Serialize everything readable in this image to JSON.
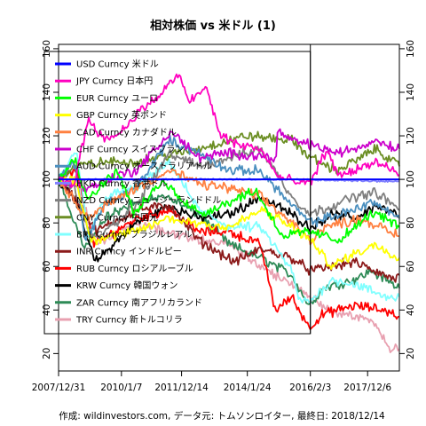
{
  "chart_data": {
    "type": "line",
    "title": "相対株価 vs 米ドル (1)",
    "credit": "作成: wildinvestors.com, データ元: トムソンロイター, 最終日: 2018/12/14",
    "x_tick_labels": [
      "2007/12/31",
      "2010/1/7",
      "2011/12/14",
      "2014/1/24",
      "2016/2/3",
      "2017/12/6"
    ],
    "x_range": [
      "2007-12-31",
      "2018-12-14"
    ],
    "ylim": [
      12,
      162
    ],
    "y_ticks": [
      20,
      40,
      60,
      80,
      100,
      120,
      140,
      160
    ],
    "marker_date": "2016-02-03",
    "legend_position": "top-left",
    "series": [
      {
        "name": "USD Curncy 米ドル",
        "color": "#0000ff",
        "points": [
          [
            "2007-12-31",
            100
          ],
          [
            "2018-12-14",
            100
          ]
        ]
      },
      {
        "name": "JPY Curncy 日本円",
        "color": "#ff00bf",
        "points": [
          [
            "2007-12-31",
            100
          ],
          [
            "2008-06-30",
            98
          ],
          [
            "2008-12-15",
            128
          ],
          [
            "2009-06-30",
            118
          ],
          [
            "2010-01-07",
            122
          ],
          [
            "2010-06-30",
            130
          ],
          [
            "2011-03-15",
            138
          ],
          [
            "2011-10-31",
            148
          ],
          [
            "2012-03-15",
            136
          ],
          [
            "2012-09-30",
            142
          ],
          [
            "2013-03-15",
            120
          ],
          [
            "2013-09-30",
            116
          ],
          [
            "2014-06-30",
            114
          ],
          [
            "2014-12-31",
            102
          ],
          [
            "2015-06-30",
            99
          ],
          [
            "2016-02-03",
            98
          ],
          [
            "2016-08-15",
            114
          ],
          [
            "2016-12-15",
            102
          ],
          [
            "2017-06-30",
            104
          ],
          [
            "2018-03-15",
            108
          ],
          [
            "2018-12-14",
            102
          ]
        ]
      },
      {
        "name": "EUR Curncy ユーロ",
        "color": "#00ff00",
        "points": [
          [
            "2007-12-31",
            100
          ],
          [
            "2008-07-15",
            110
          ],
          [
            "2008-11-15",
            91
          ],
          [
            "2009-11-30",
            104
          ],
          [
            "2010-06-07",
            84
          ],
          [
            "2011-04-30",
            99
          ],
          [
            "2012-07-20",
            84
          ],
          [
            "2014-04-30",
            95
          ],
          [
            "2015-03-15",
            74
          ],
          [
            "2016-02-03",
            76
          ],
          [
            "2017-01-03",
            72
          ],
          [
            "2018-02-15",
            85
          ],
          [
            "2018-12-14",
            78
          ]
        ]
      },
      {
        "name": "GBP Curncy 英ポンド",
        "color": "#ffff00",
        "points": [
          [
            "2007-12-31",
            100
          ],
          [
            "2008-07-15",
            100
          ],
          [
            "2009-01-15",
            72
          ],
          [
            "2010-06-30",
            76
          ],
          [
            "2011-06-30",
            82
          ],
          [
            "2013-06-30",
            78
          ],
          [
            "2014-07-15",
            86
          ],
          [
            "2015-06-30",
            78
          ],
          [
            "2016-02-03",
            72
          ],
          [
            "2016-10-15",
            60
          ],
          [
            "2017-06-30",
            66
          ],
          [
            "2018-03-15",
            70
          ],
          [
            "2018-12-14",
            64
          ]
        ]
      },
      {
        "name": "CAD Curncy カナダドル",
        "color": "#ff8040",
        "points": [
          [
            "2007-12-31",
            100
          ],
          [
            "2008-12-15",
            82
          ],
          [
            "2009-06-30",
            88
          ],
          [
            "2010-06-30",
            96
          ],
          [
            "2011-07-30",
            104
          ],
          [
            "2012-06-30",
            98
          ],
          [
            "2013-06-30",
            96
          ],
          [
            "2014-06-30",
            92
          ],
          [
            "2015-06-30",
            80
          ],
          [
            "2016-02-03",
            72
          ],
          [
            "2016-06-30",
            78
          ],
          [
            "2017-09-15",
            82
          ],
          [
            "2018-12-14",
            74
          ]
        ]
      },
      {
        "name": "CHF Curncy スイスフラン",
        "color": "#cc00cc",
        "points": [
          [
            "2007-12-31",
            100
          ],
          [
            "2008-12-15",
            96
          ],
          [
            "2009-12-15",
            102
          ],
          [
            "2010-06-30",
            104
          ],
          [
            "2011-08-15",
            122
          ],
          [
            "2012-06-30",
            110
          ],
          [
            "2013-06-30",
            112
          ],
          [
            "2014-12-31",
            110
          ],
          [
            "2015-01-16",
            122
          ],
          [
            "2015-06-30",
            118
          ],
          [
            "2016-02-03",
            116
          ],
          [
            "2016-12-15",
            112
          ],
          [
            "2017-06-30",
            114
          ],
          [
            "2018-03-15",
            118
          ],
          [
            "2018-12-14",
            114
          ]
        ]
      },
      {
        "name": "AUD Curncy オーストラリアドル",
        "color": "#4a8fbf",
        "points": [
          [
            "2007-12-31",
            100
          ],
          [
            "2008-07-15",
            108
          ],
          [
            "2008-10-31",
            72
          ],
          [
            "2009-06-30",
            88
          ],
          [
            "2010-06-30",
            96
          ],
          [
            "2011-07-15",
            118
          ],
          [
            "2012-06-30",
            112
          ],
          [
            "2013-06-30",
            104
          ],
          [
            "2014-06-30",
            104
          ],
          [
            "2015-06-30",
            88
          ],
          [
            "2016-02-03",
            80
          ],
          [
            "2017-06-30",
            86
          ],
          [
            "2018-01-25",
            90
          ],
          [
            "2018-12-14",
            82
          ]
        ]
      },
      {
        "name": "HKD Curncy 香港ドル",
        "color": "#8080ff",
        "points": [
          [
            "2007-12-31",
            100
          ],
          [
            "2008-03-15",
            100
          ],
          [
            "2009-06-30",
            100
          ],
          [
            "2012-06-30",
            100
          ],
          [
            "2015-06-30",
            100
          ],
          [
            "2018-12-14",
            99
          ]
        ]
      },
      {
        "name": "NZD Curncy ニュージーランドドル",
        "color": "#7f7f7f",
        "points": [
          [
            "2007-12-31",
            100
          ],
          [
            "2008-06-30",
            96
          ],
          [
            "2009-02-15",
            72
          ],
          [
            "2010-06-30",
            88
          ],
          [
            "2011-07-30",
            112
          ],
          [
            "2012-06-30",
            106
          ],
          [
            "2013-06-30",
            110
          ],
          [
            "2014-06-30",
            114
          ],
          [
            "2015-06-30",
            92
          ],
          [
            "2016-02-03",
            84
          ],
          [
            "2017-06-30",
            92
          ],
          [
            "2018-03-15",
            94
          ],
          [
            "2018-12-14",
            86
          ]
        ]
      },
      {
        "name": "CNY Curncy 中国元",
        "color": "#6b8e23",
        "points": [
          [
            "2007-12-31",
            100
          ],
          [
            "2008-07-15",
            106
          ],
          [
            "2009-06-30",
            108
          ],
          [
            "2010-06-30",
            108
          ],
          [
            "2012-06-30",
            114
          ],
          [
            "2013-06-30",
            118
          ],
          [
            "2014-01-30",
            120
          ],
          [
            "2015-06-30",
            118
          ],
          [
            "2016-02-03",
            110
          ],
          [
            "2016-12-15",
            104
          ],
          [
            "2018-03-15",
            114
          ],
          [
            "2018-12-14",
            106
          ]
        ]
      },
      {
        "name": "BRL Curncy ブラジルレアル",
        "color": "#80ffff",
        "points": [
          [
            "2007-12-31",
            100
          ],
          [
            "2008-07-30",
            112
          ],
          [
            "2008-12-15",
            74
          ],
          [
            "2009-06-30",
            92
          ],
          [
            "2010-06-30",
            96
          ],
          [
            "2011-07-30",
            108
          ],
          [
            "2012-06-30",
            86
          ],
          [
            "2013-06-30",
            78
          ],
          [
            "2014-06-30",
            78
          ],
          [
            "2015-06-30",
            58
          ],
          [
            "2015-09-30",
            44
          ],
          [
            "2016-02-03",
            44
          ],
          [
            "2016-10-15",
            54
          ],
          [
            "2017-06-30",
            52
          ],
          [
            "2018-06-30",
            46
          ],
          [
            "2018-12-14",
            46
          ]
        ]
      },
      {
        "name": "INR Curncy インドルピー",
        "color": "#8b1a1a",
        "points": [
          [
            "2007-12-31",
            100
          ],
          [
            "2008-06-30",
            92
          ],
          [
            "2009-03-15",
            76
          ],
          [
            "2010-06-30",
            86
          ],
          [
            "2011-07-30",
            88
          ],
          [
            "2012-06-30",
            72
          ],
          [
            "2013-08-30",
            62
          ],
          [
            "2014-06-30",
            68
          ],
          [
            "2015-06-30",
            64
          ],
          [
            "2016-02-03",
            58
          ],
          [
            "2017-06-30",
            62
          ],
          [
            "2018-10-15",
            54
          ],
          [
            "2018-12-14",
            56
          ]
        ]
      },
      {
        "name": "RUB Curncy ロシアルーブル",
        "color": "#ff0000",
        "points": [
          [
            "2007-12-31",
            100
          ],
          [
            "2008-07-30",
            104
          ],
          [
            "2009-02-15",
            70
          ],
          [
            "2010-06-30",
            82
          ],
          [
            "2011-07-30",
            86
          ],
          [
            "2012-06-30",
            76
          ],
          [
            "2013-06-30",
            76
          ],
          [
            "2014-06-30",
            70
          ],
          [
            "2014-12-16",
            40
          ],
          [
            "2015-06-30",
            46
          ],
          [
            "2016-01-20",
            32
          ],
          [
            "2016-06-30",
            38
          ],
          [
            "2017-06-30",
            42
          ],
          [
            "2018-06-30",
            40
          ],
          [
            "2018-12-14",
            37
          ]
        ]
      },
      {
        "name": "KRW Curncy 韓国ウォン",
        "color": "#000000",
        "points": [
          [
            "2007-12-31",
            100
          ],
          [
            "2008-06-30",
            92
          ],
          [
            "2009-03-02",
            62
          ],
          [
            "2010-06-30",
            80
          ],
          [
            "2011-07-30",
            88
          ],
          [
            "2012-06-30",
            82
          ],
          [
            "2013-06-30",
            84
          ],
          [
            "2014-06-30",
            92
          ],
          [
            "2015-06-30",
            84
          ],
          [
            "2016-02-03",
            78
          ],
          [
            "2016-10-15",
            84
          ],
          [
            "2017-06-30",
            82
          ],
          [
            "2018-03-15",
            88
          ],
          [
            "2018-12-14",
            83
          ]
        ]
      },
      {
        "name": "ZAR Curncy 南アフリカランド",
        "color": "#2e8b57",
        "points": [
          [
            "2007-12-31",
            100
          ],
          [
            "2008-10-30",
            68
          ],
          [
            "2009-06-30",
            82
          ],
          [
            "2010-06-30",
            90
          ],
          [
            "2011-06-30",
            92
          ],
          [
            "2012-06-30",
            84
          ],
          [
            "2013-06-30",
            70
          ],
          [
            "2014-06-30",
            64
          ],
          [
            "2015-06-30",
            56
          ],
          [
            "2016-01-20",
            42
          ],
          [
            "2016-06-30",
            50
          ],
          [
            "2017-06-30",
            54
          ],
          [
            "2018-01-25",
            58
          ],
          [
            "2018-12-14",
            50
          ]
        ]
      },
      {
        "name": "TRY Curncy 新トルコリラ",
        "color": "#e8a0b0",
        "points": [
          [
            "2007-12-31",
            100
          ],
          [
            "2008-07-30",
            104
          ],
          [
            "2009-02-15",
            70
          ],
          [
            "2010-06-30",
            80
          ],
          [
            "2011-06-30",
            76
          ],
          [
            "2012-06-30",
            72
          ],
          [
            "2013-06-30",
            70
          ],
          [
            "2014-06-30",
            60
          ],
          [
            "2015-06-30",
            52
          ],
          [
            "2016-02-03",
            46
          ],
          [
            "2016-12-15",
            38
          ],
          [
            "2017-06-30",
            38
          ],
          [
            "2018-03-15",
            34
          ],
          [
            "2018-08-15",
            22
          ],
          [
            "2018-10-15",
            24
          ],
          [
            "2018-12-14",
            22
          ]
        ]
      }
    ]
  }
}
